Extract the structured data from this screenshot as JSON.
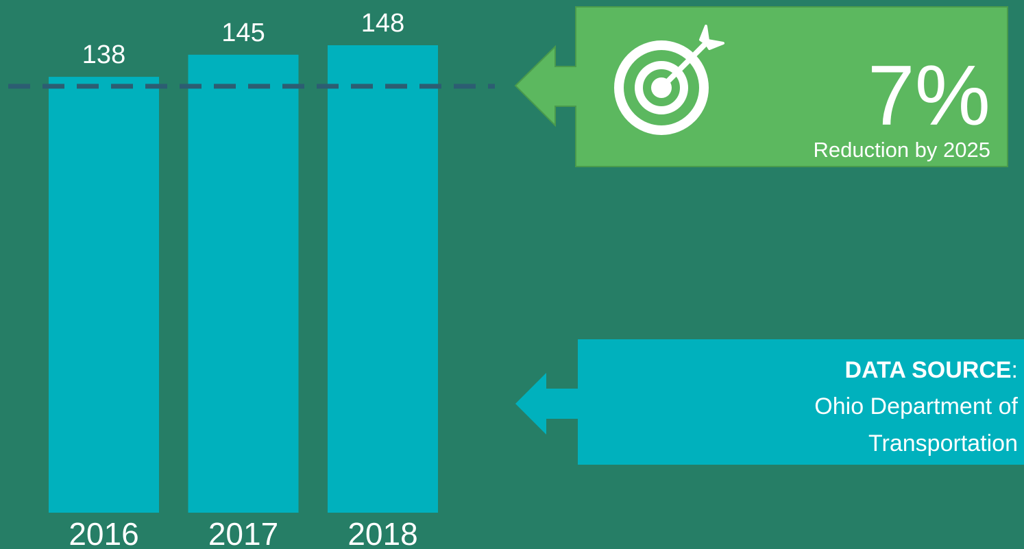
{
  "chart_data": {
    "type": "bar",
    "categories": [
      "2016",
      "2017",
      "2018"
    ],
    "values": [
      138,
      145,
      148
    ],
    "color": "#00b1bd",
    "target": 135,
    "target_color": "#2c5d72",
    "goal": {
      "value_text": "7%",
      "caption": "Reduction by 2025",
      "color": "#5cb85f"
    },
    "source": {
      "label": "DATA SOURCE",
      "separator": ":",
      "lines": [
        "Ohio Department of",
        "Transportation"
      ],
      "color": "#00b1bd"
    }
  }
}
